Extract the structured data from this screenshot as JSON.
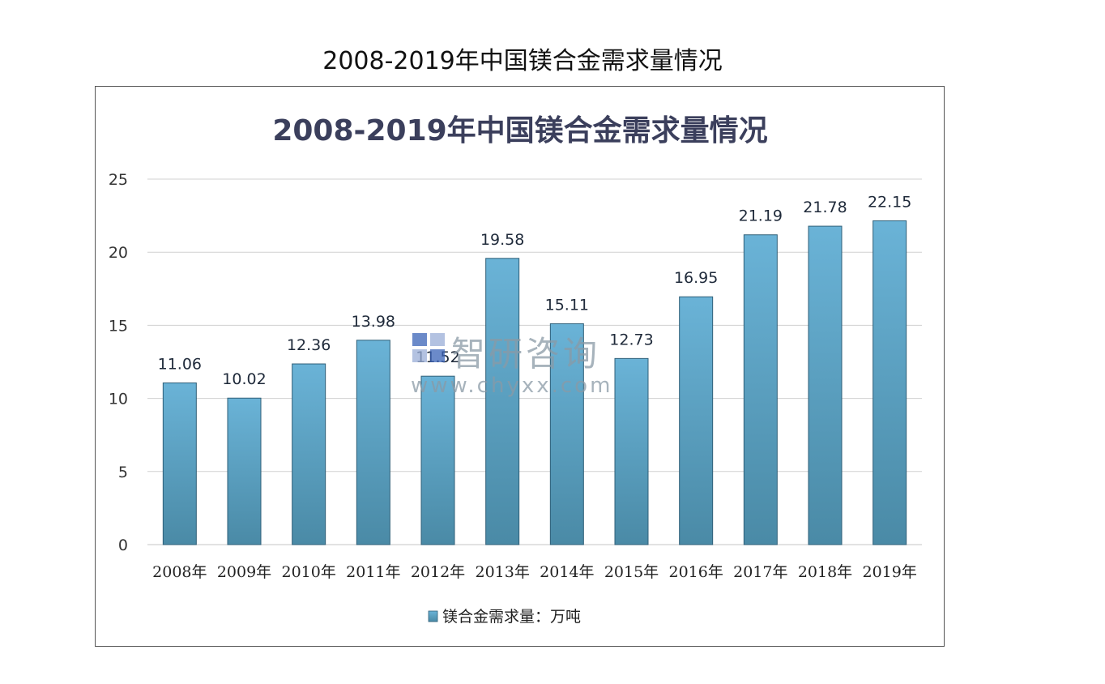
{
  "page": {
    "title": "2008-2019年中国镁合金需求量情况"
  },
  "watermark": {
    "name": "智研咨询",
    "url": "www.chyxx.com"
  },
  "chart_data": {
    "type": "bar",
    "title": "2008-2019年中国镁合金需求量情况",
    "categories": [
      "2008年",
      "2009年",
      "2010年",
      "2011年",
      "2012年",
      "2013年",
      "2014年",
      "2015年",
      "2016年",
      "2017年",
      "2018年",
      "2019年"
    ],
    "series": [
      {
        "name": "镁合金需求量：万吨",
        "values": [
          11.06,
          10.02,
          12.36,
          13.98,
          11.52,
          19.58,
          15.11,
          12.73,
          16.95,
          21.19,
          21.78,
          22.15
        ],
        "labels": [
          "11.06",
          "10.02",
          "12.36",
          "13.98",
          "11.52",
          "19.58",
          "15.11",
          "12.73",
          "16.95",
          "21.19",
          "21.78",
          "22.15"
        ]
      }
    ],
    "yticks": [
      "0",
      "5",
      "10",
      "15",
      "20",
      "25"
    ],
    "ylim": [
      0,
      25
    ],
    "xlabel": "",
    "ylabel": "",
    "grid": true,
    "legend_position": "bottom",
    "colors": {
      "bar_top": "#6ab3d7",
      "bar_bottom": "#4a8aa6",
      "bar_edge": "#2f5f78",
      "grid": "#d0d0d0",
      "title": "#3b3f5c",
      "label": "#1f2a3a"
    }
  }
}
